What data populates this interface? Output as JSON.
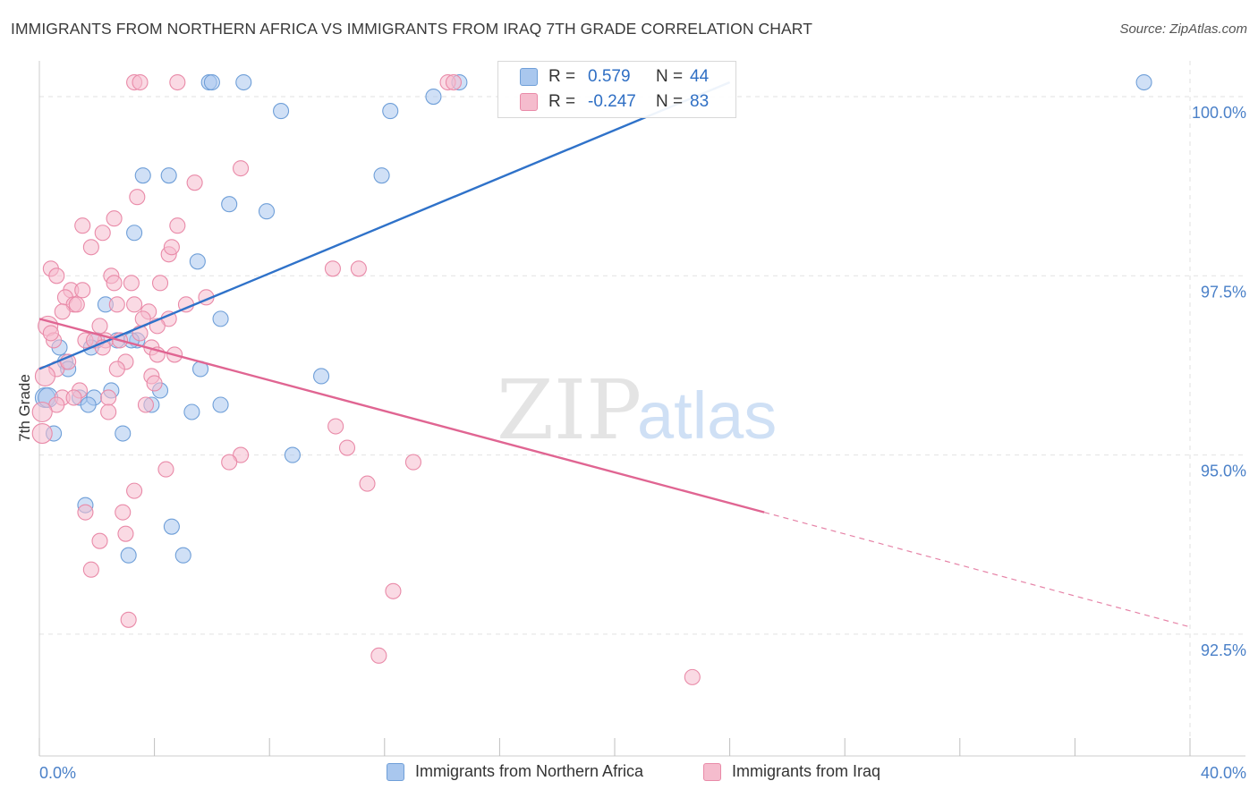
{
  "title": "IMMIGRANTS FROM NORTHERN AFRICA VS IMMIGRANTS FROM IRAQ 7TH GRADE CORRELATION CHART",
  "source": "Source: ZipAtlas.com",
  "watermark": {
    "zip": "ZIP",
    "atlas": "atlas"
  },
  "colors": {
    "blue_fill": "#a9c7ee",
    "blue_stroke": "#6f9fd8",
    "blue_line": "#2f72c9",
    "pink_fill": "#f5bccd",
    "pink_stroke": "#e98aa8",
    "pink_line": "#e06592",
    "axis_label": "#4a80c8",
    "grid": "#e2e2e2"
  },
  "legend_top": {
    "rows": [
      {
        "r_label": "R =",
        "r_value": "0.579",
        "n_label": "N =",
        "n_value": "44",
        "series": "blue"
      },
      {
        "r_label": "R =",
        "r_value": "-0.247",
        "n_label": "N =",
        "n_value": "83",
        "series": "pink"
      }
    ]
  },
  "legend_bottom": {
    "items": [
      {
        "label": "Immigrants from Northern Africa",
        "series": "blue"
      },
      {
        "label": "Immigrants from Iraq",
        "series": "pink"
      }
    ]
  },
  "chart_data": {
    "type": "scatter",
    "xlabel": "",
    "ylabel": "7th Grade",
    "xlim": [
      0,
      40
    ],
    "ylim": [
      90.8,
      100.5
    ],
    "x_tick_labels": [
      {
        "value": 0,
        "label": "0.0%"
      },
      {
        "value": 40,
        "label": "40.0%"
      }
    ],
    "y_tick_labels": [
      {
        "value": 100,
        "label": "100.0%"
      },
      {
        "value": 97.5,
        "label": "97.5%"
      },
      {
        "value": 95,
        "label": "95.0%"
      },
      {
        "value": 92.5,
        "label": "92.5%"
      }
    ],
    "grid": true,
    "series": [
      {
        "name": "Immigrants from Northern Africa",
        "color": "blue",
        "trend": {
          "x0": 0,
          "y0": 96.2,
          "x1": 24.0,
          "y1": 100.2,
          "dashed_to": null
        },
        "points": [
          [
            5.9,
            100.2
          ],
          [
            6.0,
            100.2
          ],
          [
            7.1,
            100.2
          ],
          [
            14.6,
            100.2
          ],
          [
            38.4,
            100.2
          ],
          [
            13.7,
            100.0
          ],
          [
            8.4,
            99.8
          ],
          [
            11.9,
            98.9
          ],
          [
            3.6,
            98.9
          ],
          [
            4.5,
            98.9
          ],
          [
            6.6,
            98.5
          ],
          [
            7.9,
            98.4
          ],
          [
            3.3,
            98.1
          ],
          [
            5.5,
            97.7
          ],
          [
            2.3,
            97.1
          ],
          [
            6.3,
            96.9
          ],
          [
            2.7,
            96.6
          ],
          [
            3.4,
            96.6
          ],
          [
            0.7,
            96.5
          ],
          [
            0.9,
            96.3
          ],
          [
            1.0,
            96.2
          ],
          [
            5.6,
            96.2
          ],
          [
            9.8,
            96.1
          ],
          [
            2.5,
            95.9
          ],
          [
            4.2,
            95.9
          ],
          [
            0.2,
            95.8
          ],
          [
            0.3,
            95.8
          ],
          [
            1.4,
            95.8
          ],
          [
            1.9,
            95.8
          ],
          [
            1.7,
            95.7
          ],
          [
            3.9,
            95.7
          ],
          [
            6.3,
            95.7
          ],
          [
            5.3,
            95.6
          ],
          [
            0.5,
            95.3
          ],
          [
            2.9,
            95.3
          ],
          [
            8.8,
            95.0
          ],
          [
            1.6,
            94.3
          ],
          [
            4.6,
            94.0
          ],
          [
            3.1,
            93.6
          ],
          [
            5.0,
            93.6
          ],
          [
            12.2,
            99.8
          ],
          [
            2.0,
            96.6
          ],
          [
            1.8,
            96.5
          ],
          [
            3.2,
            96.6
          ]
        ]
      },
      {
        "name": "Immigrants from Iraq",
        "color": "pink",
        "trend": {
          "x0": 0,
          "y0": 96.9,
          "x1": 25.2,
          "y1": 94.2,
          "dashed_to": {
            "x": 40,
            "y": 92.6
          }
        },
        "points": [
          [
            3.3,
            100.2
          ],
          [
            3.5,
            100.2
          ],
          [
            4.8,
            100.2
          ],
          [
            14.2,
            100.2
          ],
          [
            14.4,
            100.2
          ],
          [
            7.0,
            99.0
          ],
          [
            5.4,
            98.8
          ],
          [
            3.4,
            98.6
          ],
          [
            2.6,
            98.3
          ],
          [
            4.8,
            98.2
          ],
          [
            1.5,
            98.2
          ],
          [
            2.2,
            98.1
          ],
          [
            1.8,
            97.9
          ],
          [
            4.5,
            97.8
          ],
          [
            4.6,
            97.9
          ],
          [
            0.4,
            97.6
          ],
          [
            2.5,
            97.5
          ],
          [
            0.6,
            97.5
          ],
          [
            3.2,
            97.4
          ],
          [
            4.2,
            97.4
          ],
          [
            10.2,
            97.6
          ],
          [
            11.1,
            97.6
          ],
          [
            1.1,
            97.3
          ],
          [
            0.9,
            97.2
          ],
          [
            5.8,
            97.2
          ],
          [
            1.2,
            97.1
          ],
          [
            1.3,
            97.1
          ],
          [
            2.7,
            97.1
          ],
          [
            3.3,
            97.1
          ],
          [
            5.1,
            97.1
          ],
          [
            3.8,
            97.0
          ],
          [
            0.8,
            97.0
          ],
          [
            4.5,
            96.9
          ],
          [
            2.1,
            96.8
          ],
          [
            3.5,
            96.7
          ],
          [
            4.1,
            96.8
          ],
          [
            0.3,
            96.8
          ],
          [
            0.5,
            96.6
          ],
          [
            1.6,
            96.6
          ],
          [
            2.3,
            96.6
          ],
          [
            2.8,
            96.6
          ],
          [
            4.7,
            96.4
          ],
          [
            3.0,
            96.3
          ],
          [
            0.6,
            96.2
          ],
          [
            2.7,
            96.2
          ],
          [
            3.9,
            96.1
          ],
          [
            0.2,
            96.1
          ],
          [
            4.0,
            96.0
          ],
          [
            1.4,
            95.9
          ],
          [
            0.8,
            95.8
          ],
          [
            1.2,
            95.8
          ],
          [
            2.4,
            95.8
          ],
          [
            0.6,
            95.7
          ],
          [
            3.7,
            95.7
          ],
          [
            2.4,
            95.6
          ],
          [
            0.1,
            95.6
          ],
          [
            10.3,
            95.4
          ],
          [
            0.1,
            95.3
          ],
          [
            10.7,
            95.1
          ],
          [
            7.0,
            95.0
          ],
          [
            13.0,
            94.9
          ],
          [
            6.6,
            94.9
          ],
          [
            4.4,
            94.8
          ],
          [
            11.4,
            94.6
          ],
          [
            3.3,
            94.5
          ],
          [
            1.6,
            94.2
          ],
          [
            2.9,
            94.2
          ],
          [
            3.0,
            93.9
          ],
          [
            2.1,
            93.8
          ],
          [
            1.8,
            93.4
          ],
          [
            12.3,
            93.1
          ],
          [
            3.1,
            92.7
          ],
          [
            11.8,
            92.2
          ],
          [
            22.7,
            91.9
          ],
          [
            3.9,
            96.5
          ],
          [
            1.9,
            96.6
          ],
          [
            2.6,
            97.4
          ],
          [
            4.1,
            96.4
          ],
          [
            1.0,
            96.3
          ],
          [
            0.4,
            96.7
          ],
          [
            2.2,
            96.5
          ],
          [
            3.6,
            96.9
          ],
          [
            1.5,
            97.3
          ]
        ]
      }
    ]
  }
}
